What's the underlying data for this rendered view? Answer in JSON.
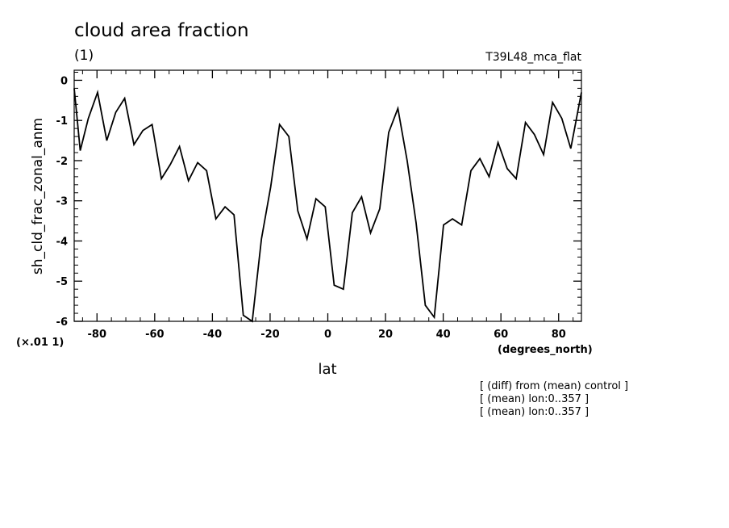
{
  "chart_data": {
    "type": "line",
    "title": "cloud area fraction",
    "units": "(1)",
    "dataset": "T39L48_mca_flat",
    "ylabel": "sh_cld_frac_zonal_anm",
    "xlabel": "lat",
    "xunits": "(degrees_north)",
    "yscale_note": "(×.01 1)",
    "xlim": [
      -87.9,
      87.9
    ],
    "ylim": [
      -6,
      0.25
    ],
    "xticks": [
      -80,
      -60,
      -40,
      -20,
      0,
      20,
      40,
      60,
      80
    ],
    "xtick_labels": [
      "-80",
      "-60",
      "-40",
      "-20",
      "0",
      "20",
      "40",
      "60",
      "80"
    ],
    "yticks": [
      0,
      -1,
      -2,
      -3,
      -4,
      -5,
      -6
    ],
    "ytick_labels": [
      "0",
      "-1",
      "-2",
      "-3",
      "-4",
      "-5",
      "-6"
    ],
    "grid": false,
    "notes": [
      "[ (diff) from (mean) control ]",
      "[ (mean) lon:0..357 ]",
      "[ (mean) lon:0..357 ]"
    ],
    "series": [
      {
        "x": [
          -87.9,
          -85.8,
          -83.0,
          -79.8,
          -76.6,
          -73.5,
          -70.4,
          -67.2,
          -64.1,
          -60.9,
          -57.7,
          -54.6,
          -51.4,
          -48.3,
          -45.1,
          -42.0,
          -38.8,
          -35.6,
          -32.5,
          -29.3,
          -26.2,
          -23.0,
          -19.8,
          -16.7,
          -13.5,
          -10.4,
          -7.2,
          -4.1,
          -0.9,
          2.2,
          5.4,
          8.5,
          11.7,
          14.8,
          18.0,
          21.1,
          24.3,
          27.5,
          30.6,
          33.8,
          36.9,
          40.1,
          43.2,
          46.4,
          49.6,
          52.7,
          55.9,
          59.0,
          62.2,
          65.3,
          68.5,
          71.6,
          74.8,
          77.9,
          81.1,
          84.2,
          87.9
        ],
        "y": [
          -0.2,
          -1.75,
          -0.95,
          -0.3,
          -1.5,
          -0.8,
          -0.45,
          -1.6,
          -1.25,
          -1.1,
          -2.45,
          -2.1,
          -1.65,
          -2.5,
          -2.05,
          -2.25,
          -3.45,
          -3.15,
          -3.35,
          -5.85,
          -6.0,
          -3.95,
          -2.65,
          -1.1,
          -1.4,
          -3.25,
          -3.95,
          -2.95,
          -3.15,
          -5.1,
          -5.2,
          -3.3,
          -2.9,
          -3.8,
          -3.2,
          -1.3,
          -0.7,
          -2.0,
          -3.55,
          -5.6,
          -5.9,
          -3.6,
          -3.45,
          -3.6,
          -2.25,
          -1.95,
          -2.4,
          -1.55,
          -2.2,
          -2.45,
          -1.05,
          -1.35,
          -1.85,
          -0.55,
          -0.95,
          -1.7,
          -0.3
        ]
      }
    ]
  }
}
